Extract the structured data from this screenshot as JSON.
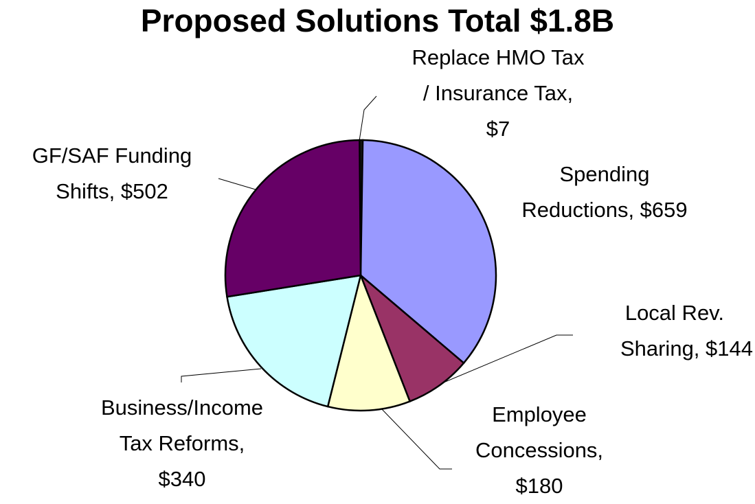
{
  "chart_data": {
    "type": "pie",
    "title": "Proposed Solutions Total $1.8B",
    "slices": [
      {
        "label_lines": [
          "Replace HMO Tax",
          "/ Insurance Tax,",
          "$7"
        ],
        "value": 7,
        "color": "#1a1a1a"
      },
      {
        "label_lines": [
          "Spending",
          "Reductions,  $659"
        ],
        "value": 659,
        "color": "#9999ff"
      },
      {
        "label_lines": [
          "Local Rev.",
          "Sharing,  $144"
        ],
        "value": 144,
        "color": "#993366"
      },
      {
        "label_lines": [
          "Employee",
          "Concessions,",
          "$180"
        ],
        "value": 180,
        "color": "#ffffcc"
      },
      {
        "label_lines": [
          "Business/Income",
          "Tax Reforms,",
          "$340"
        ],
        "value": 340,
        "color": "#ccffff"
      },
      {
        "label_lines": [
          "GF/SAF Funding",
          "Shifts,  $502"
        ],
        "value": 502,
        "color": "#660066"
      }
    ]
  }
}
